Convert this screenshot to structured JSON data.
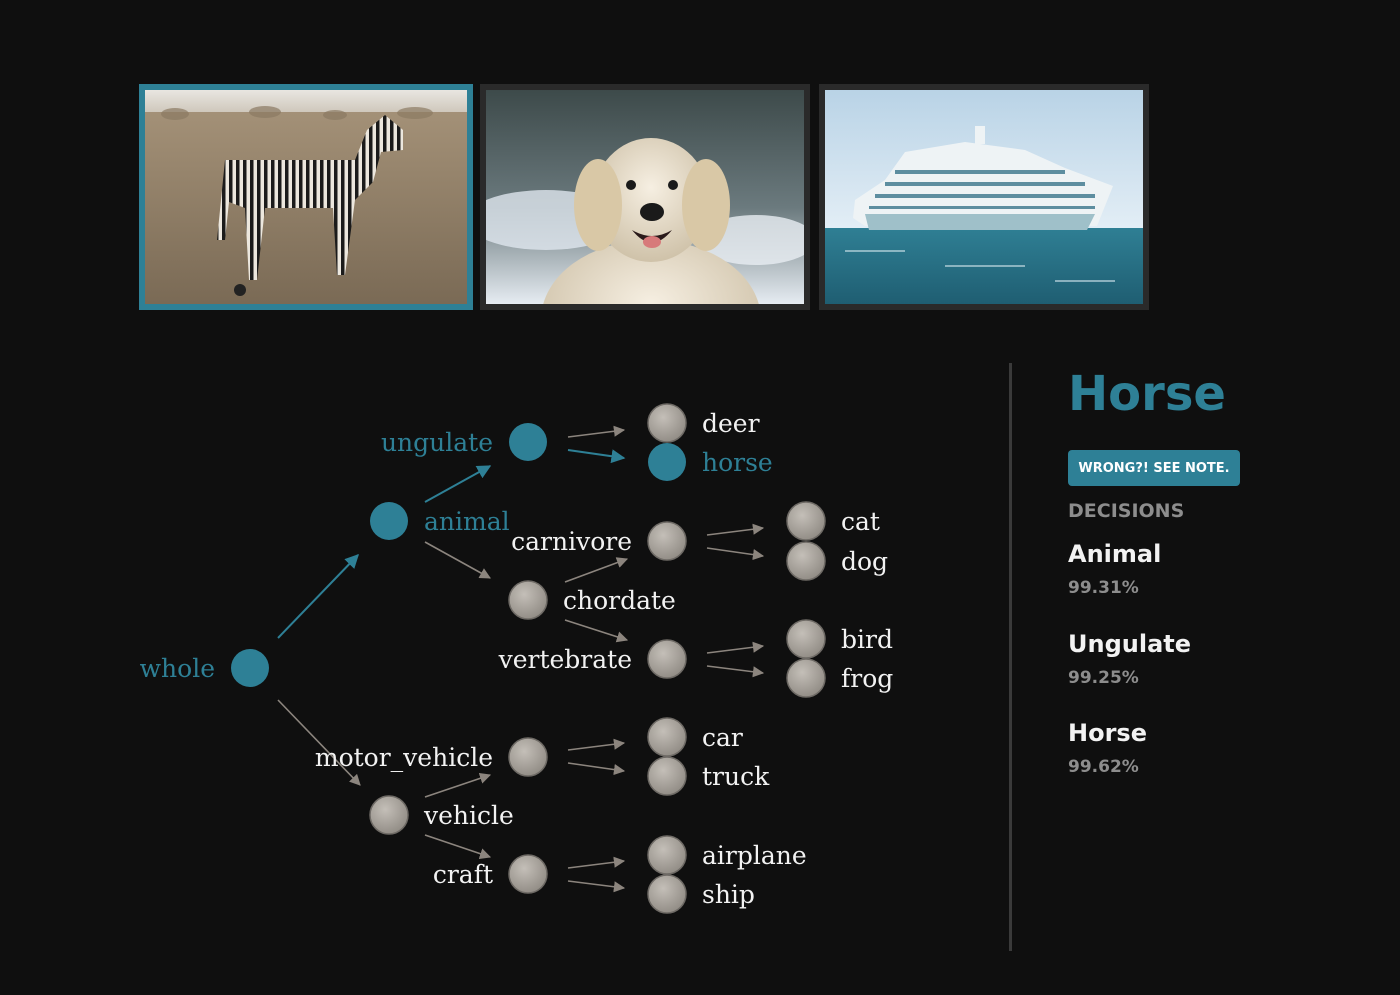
{
  "images": [
    {
      "subject": "zebra",
      "selected": true
    },
    {
      "subject": "dog",
      "selected": false
    },
    {
      "subject": "cruise ship",
      "selected": false
    }
  ],
  "tree": {
    "whole": "whole",
    "animal": "animal",
    "vehicle": "vehicle",
    "ungulate": "ungulate",
    "carnivore": "carnivore",
    "chordate": "chordate",
    "vertebrate": "vertebrate",
    "motor_vehicle": "motor_vehicle",
    "craft": "craft",
    "deer": "deer",
    "horse": "horse",
    "cat": "cat",
    "dog": "dog",
    "bird": "bird",
    "frog": "frog",
    "car": "car",
    "truck": "truck",
    "airplane": "airplane",
    "ship": "ship",
    "active_path": [
      "whole",
      "animal",
      "ungulate",
      "horse"
    ]
  },
  "panel": {
    "prediction": "Horse",
    "note_button": "WRONG?! SEE NOTE.",
    "decisions_heading": "DECISIONS",
    "decisions": [
      {
        "label": "Animal",
        "percent": "99.31%"
      },
      {
        "label": "Ungulate",
        "percent": "99.25%"
      },
      {
        "label": "Horse",
        "percent": "99.62%"
      }
    ]
  },
  "colors": {
    "accent": "#2e8096",
    "background": "#0f0f0f",
    "inactive_node": "#a8a39d",
    "text": "#f2f2f2",
    "muted": "#8d8d8d"
  }
}
